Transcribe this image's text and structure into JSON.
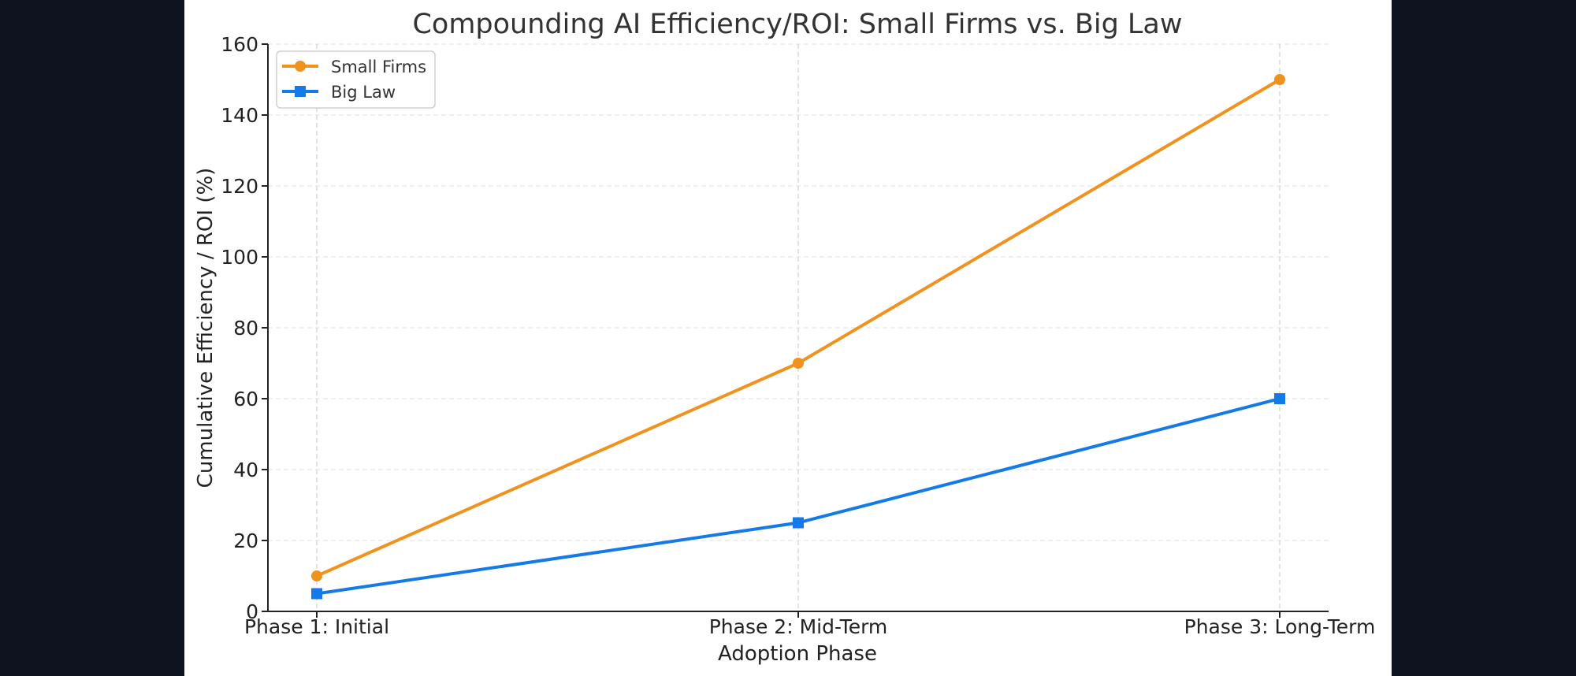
{
  "chart_data": {
    "type": "line",
    "title": "Compounding AI Efficiency/ROI: Small Firms vs. Big Law",
    "xlabel": "Adoption Phase",
    "ylabel": "Cumulative Efficiency / ROI (%)",
    "categories": [
      "Phase 1: Initial",
      "Phase 2: Mid-Term",
      "Phase 3: Long-Term"
    ],
    "ylim": [
      0,
      160
    ],
    "yticks": [
      0,
      20,
      40,
      60,
      80,
      100,
      120,
      140,
      160
    ],
    "grid": true,
    "legend_position": "top-left",
    "series": [
      {
        "name": "Small Firms",
        "values": [
          10,
          70,
          150
        ],
        "color": "#f0921e",
        "marker": "circle"
      },
      {
        "name": "Big Law",
        "values": [
          5,
          25,
          60
        ],
        "color": "#1479e9",
        "marker": "square"
      }
    ]
  },
  "colors": {
    "background": "#0f1320",
    "panel": "#ffffff"
  }
}
